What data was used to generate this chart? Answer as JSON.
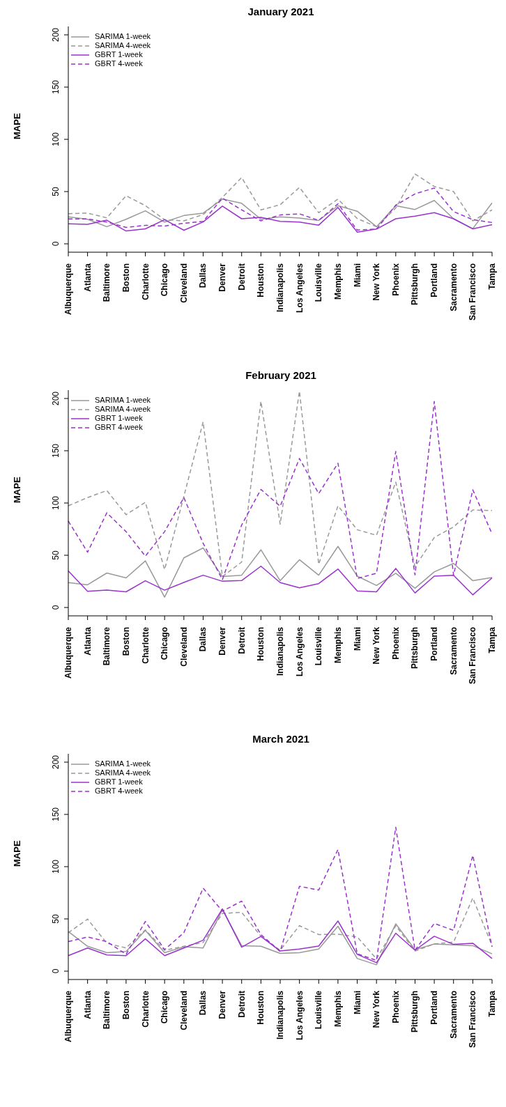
{
  "chart_data": [
    {
      "type": "line",
      "title": "January 2021",
      "ylabel": "MAPE",
      "legend": "top left",
      "categories": [
        "Albuquerque",
        "Atlanta",
        "Baltimore",
        "Boston",
        "Charlotte",
        "Chicago",
        "Cleveland",
        "Dallas",
        "Denver",
        "Detroit",
        "Houston",
        "Indianapolis",
        "Los Angeles",
        "Louisville",
        "Memphis",
        "Miami",
        "New York",
        "Phoenix",
        "Pittsburgh",
        "Portland",
        "Sacramento",
        "San Francisco",
        "Tampa"
      ],
      "ylim": [
        -8,
        208
      ],
      "yticks": [
        0,
        50,
        100,
        150,
        200
      ],
      "series": [
        {
          "name": "SARIMA 1-week",
          "color": "#999999",
          "line_style": "solid",
          "values": [
            25.8,
            23.5,
            16.4,
            23.5,
            31.6,
            20.8,
            27.1,
            29.4,
            42.8,
            38.8,
            23.5,
            25.8,
            24.7,
            22.4,
            36.5,
            31.2,
            16.4,
            36.5,
            32.9,
            41.5,
            24.0,
            14.6,
            39.2
          ]
        },
        {
          "name": "SARIMA 4-week",
          "color": "#999999",
          "line_style": "dashed",
          "values": [
            28.9,
            29.4,
            24.9,
            46.0,
            36.5,
            23.1,
            22.0,
            28.0,
            44.4,
            63.5,
            32.5,
            37.4,
            54.0,
            29.8,
            42.8,
            24.2,
            16.4,
            34.3,
            66.8,
            54.9,
            50.0,
            22.0,
            32.5
          ]
        },
        {
          "name": "GBRT 1-week",
          "color": "#9a32cd",
          "line_style": "solid",
          "values": [
            19.1,
            18.6,
            22.6,
            12.3,
            14.3,
            23.1,
            13.0,
            20.9,
            36.1,
            24.0,
            25.3,
            21.5,
            20.9,
            17.9,
            34.8,
            11.2,
            14.1,
            24.0,
            26.5,
            29.8,
            24.0,
            14.3,
            18.4
          ]
        },
        {
          "name": "GBRT 4-week",
          "color": "#9a32cd",
          "line_style": "dashed",
          "values": [
            23.8,
            23.8,
            20.9,
            15.7,
            17.7,
            17.0,
            19.7,
            21.5,
            43.7,
            32.5,
            22.0,
            27.6,
            28.7,
            22.4,
            38.3,
            13.2,
            14.1,
            37.0,
            47.8,
            53.4,
            30.9,
            23.1,
            20.4
          ]
        }
      ]
    },
    {
      "type": "line",
      "title": "February 2021",
      "ylabel": "MAPE",
      "legend": "top left",
      "categories": [
        "Albuquerque",
        "Atlanta",
        "Baltimore",
        "Boston",
        "Charlotte",
        "Chicago",
        "Cleveland",
        "Dallas",
        "Denver",
        "Detroit",
        "Houston",
        "Indianapolis",
        "Los Angeles",
        "Louisville",
        "Memphis",
        "Miami",
        "New York",
        "Phoenix",
        "Pittsburgh",
        "Portland",
        "Sacramento",
        "San Francisco",
        "Tampa"
      ],
      "ylim": [
        -8,
        208
      ],
      "yticks": [
        0,
        50,
        100,
        150,
        200
      ],
      "series": [
        {
          "name": "SARIMA 1-week",
          "color": "#999999",
          "line_style": "solid",
          "values": [
            23.8,
            21.7,
            33.0,
            28.3,
            44.6,
            9.9,
            47.5,
            57.0,
            29.6,
            30.9,
            55.2,
            25.6,
            45.7,
            30.9,
            58.5,
            30.0,
            21.1,
            32.7,
            18.4,
            34.1,
            42.2,
            25.6,
            28.7
          ]
        },
        {
          "name": "SARIMA 4-week",
          "color": "#999999",
          "line_style": "dashed",
          "values": [
            97.3,
            105.2,
            111.9,
            88.8,
            100.7,
            36.3,
            106.3,
            177.6,
            29.6,
            43.5,
            197.3,
            79.8,
            207,
            41.3,
            97.3,
            74.4,
            69.1,
            120.0,
            39.0,
            67.0,
            77.1,
            93.3,
            92.8
          ]
        },
        {
          "name": "GBRT 1-week",
          "color": "#9a32cd",
          "line_style": "solid",
          "values": [
            35.0,
            15.5,
            16.6,
            15.0,
            25.6,
            16.6,
            24.0,
            30.9,
            25.1,
            25.8,
            39.5,
            23.8,
            18.8,
            22.9,
            36.8,
            15.9,
            15.0,
            37.4,
            13.9,
            30.0,
            30.9,
            12.1,
            28.3
          ]
        },
        {
          "name": "GBRT 4-week",
          "color": "#9a32cd",
          "line_style": "dashed",
          "values": [
            82.7,
            52.9,
            90.6,
            72.6,
            49.1,
            72.6,
            105.2,
            61.4,
            26.7,
            78.9,
            113.0,
            96.9,
            142.6,
            109.0,
            138.1,
            27.8,
            32.7,
            149.3,
            31.2,
            197.1,
            30.9,
            112.6,
            70.4
          ]
        }
      ]
    },
    {
      "type": "line",
      "title": "March 2021",
      "ylabel": "MAPE",
      "legend": "top left",
      "categories": [
        "Albuquerque",
        "Atlanta",
        "Baltimore",
        "Boston",
        "Charlotte",
        "Chicago",
        "Cleveland",
        "Dallas",
        "Denver",
        "Detroit",
        "Houston",
        "Indianapolis",
        "Los Angeles",
        "Louisville",
        "Memphis",
        "Miami",
        "New York",
        "Phoenix",
        "Pittsburgh",
        "Portland",
        "Sacramento",
        "San Francisco",
        "Tampa"
      ],
      "ylim": [
        -8,
        208
      ],
      "yticks": [
        0,
        50,
        100,
        150,
        200
      ],
      "series": [
        {
          "name": "SARIMA 1-week",
          "color": "#999999",
          "line_style": "solid",
          "values": [
            37.9,
            23.8,
            17.7,
            18.8,
            39.0,
            17.7,
            23.3,
            22.2,
            58.7,
            24.4,
            23.8,
            17.0,
            17.7,
            21.1,
            43.0,
            12.1,
            6.1,
            45.3,
            20.6,
            26.0,
            25.1,
            24.4,
            16.6
          ]
        },
        {
          "name": "SARIMA 4-week",
          "color": "#999999",
          "line_style": "dashed",
          "values": [
            36.8,
            49.8,
            26.7,
            22.2,
            39.5,
            20.0,
            23.8,
            27.4,
            55.2,
            56.3,
            33.4,
            20.0,
            43.5,
            35.0,
            35.4,
            32.7,
            11.7,
            43.5,
            19.3,
            26.0,
            27.8,
            70.0,
            24.4
          ]
        },
        {
          "name": "GBRT 1-week",
          "color": "#9a32cd",
          "line_style": "solid",
          "values": [
            14.8,
            22.2,
            15.5,
            14.8,
            30.9,
            14.8,
            22.2,
            29.6,
            59.6,
            22.9,
            33.2,
            19.3,
            21.1,
            24.0,
            48.0,
            16.1,
            8.1,
            36.3,
            20.0,
            33.4,
            25.6,
            26.7,
            12.1
          ]
        },
        {
          "name": "GBRT 4-week",
          "color": "#9a32cd",
          "line_style": "dashed",
          "values": [
            28.3,
            32.7,
            28.3,
            16.1,
            47.5,
            20.6,
            36.8,
            79.4,
            57.4,
            67.0,
            35.0,
            18.8,
            81.2,
            77.6,
            116.4,
            16.6,
            10.3,
            137.7,
            20.0,
            45.7,
            39.0,
            110.8,
            23.3
          ]
        }
      ]
    }
  ]
}
